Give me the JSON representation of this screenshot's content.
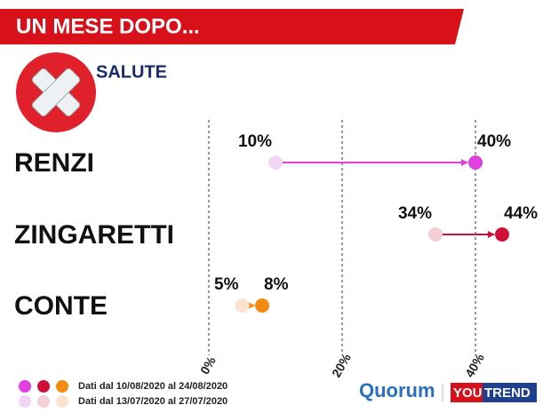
{
  "chart_data": {
    "type": "dumbbell",
    "title": "UN MESE DOPO...",
    "subtitle": "SALUTE",
    "categories": [
      "RENZI",
      "ZINGARETTI",
      "CONTE"
    ],
    "series": [
      {
        "name": "Dati dal 13/07/2020 al 27/07/2020",
        "colors": [
          "#f4d4f4",
          "#f4cfd6",
          "#fbe3cf"
        ],
        "values": [
          10,
          34,
          5
        ],
        "value_labels": [
          "10%",
          "34%",
          "5%"
        ]
      },
      {
        "name": "Dati dal 10/08/2020 al 24/08/2020",
        "colors": [
          "#e040e0",
          "#d0103a",
          "#f58a12"
        ],
        "values": [
          40,
          44,
          8
        ],
        "value_labels": [
          "40%",
          "44%",
          "8%"
        ]
      }
    ],
    "xlim": [
      0,
      40
    ],
    "xticks": [
      {
        "value": 0,
        "label": "0%"
      },
      {
        "value": 20,
        "label": "20%"
      },
      {
        "value": 40,
        "label": "40%"
      }
    ],
    "grid": true,
    "logos": [
      "Quorum",
      "YOU",
      "TREND"
    ]
  }
}
